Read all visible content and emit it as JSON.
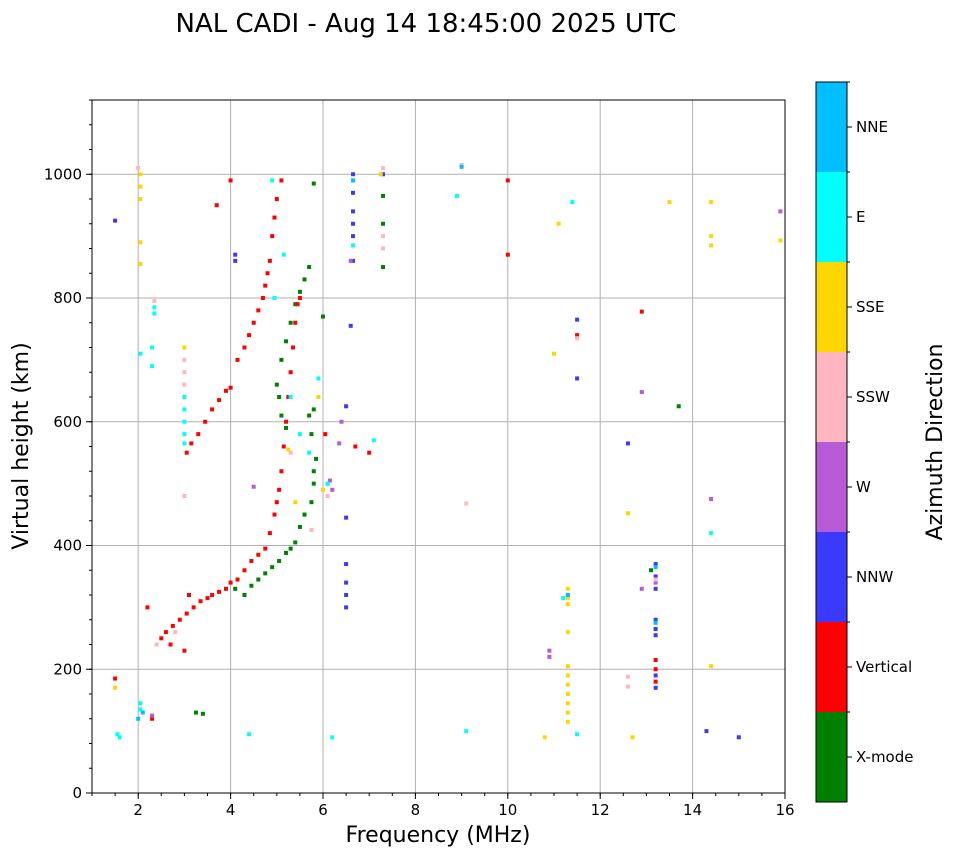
{
  "chart_data": {
    "type": "scatter",
    "title": "NAL CADI - Aug 14 18:45:00 2025 UTC",
    "xlabel": "Frequency (MHz)",
    "ylabel": "Virtual height (km)",
    "xlim": [
      1,
      16
    ],
    "ylim": [
      0,
      1120
    ],
    "xticks": [
      2,
      4,
      6,
      8,
      10,
      12,
      14,
      16
    ],
    "yticks": [
      0,
      200,
      400,
      600,
      800,
      1000
    ],
    "grid": true,
    "colorbar": {
      "label": "Azimuth Direction",
      "categories": [
        {
          "name": "X-mode",
          "color": "#008000"
        },
        {
          "name": "Vertical",
          "color": "#ff0000"
        },
        {
          "name": "NNW",
          "color": "#3a3aff"
        },
        {
          "name": "W",
          "color": "#b65ad6"
        },
        {
          "name": "SSW",
          "color": "#ffb6c1"
        },
        {
          "name": "SSE",
          "color": "#ffd700"
        },
        {
          "name": "E",
          "color": "#00ffff"
        },
        {
          "name": "NNE",
          "color": "#00bfff"
        }
      ]
    },
    "series": [
      {
        "name": "X-mode",
        "points": [
          [
            3.25,
            130
          ],
          [
            3.4,
            128
          ],
          [
            4.3,
            320
          ],
          [
            4.45,
            335
          ],
          [
            4.6,
            345
          ],
          [
            4.75,
            355
          ],
          [
            4.9,
            365
          ],
          [
            5.05,
            375
          ],
          [
            5.2,
            388
          ],
          [
            5.3,
            395
          ],
          [
            5.4,
            405
          ],
          [
            5.5,
            430
          ],
          [
            5.6,
            450
          ],
          [
            5.75,
            470
          ],
          [
            5.8,
            500
          ],
          [
            5.8,
            520
          ],
          [
            5.85,
            540
          ],
          [
            5.75,
            580
          ],
          [
            5.8,
            620
          ],
          [
            6.0,
            770
          ],
          [
            5.7,
            610
          ],
          [
            5.2,
            590
          ],
          [
            5.1,
            610
          ],
          [
            5.05,
            640
          ],
          [
            5.0,
            660
          ],
          [
            5.1,
            700
          ],
          [
            5.2,
            730
          ],
          [
            5.3,
            760
          ],
          [
            5.4,
            790
          ],
          [
            5.5,
            810
          ],
          [
            5.6,
            830
          ],
          [
            5.7,
            850
          ],
          [
            5.8,
            985
          ],
          [
            7.3,
            850
          ],
          [
            7.3,
            920
          ],
          [
            7.3,
            965
          ],
          [
            13.1,
            360
          ],
          [
            13.7,
            625
          ],
          [
            4.1,
            330
          ]
        ]
      },
      {
        "name": "Vertical",
        "points": [
          [
            1.5,
            185
          ],
          [
            2.3,
            120
          ],
          [
            2.5,
            250
          ],
          [
            2.6,
            260
          ],
          [
            2.75,
            270
          ],
          [
            2.9,
            280
          ],
          [
            3.05,
            290
          ],
          [
            3.2,
            300
          ],
          [
            3.35,
            310
          ],
          [
            3.5,
            315
          ],
          [
            3.6,
            320
          ],
          [
            3.75,
            325
          ],
          [
            3.9,
            330
          ],
          [
            4.0,
            340
          ],
          [
            4.15,
            345
          ],
          [
            4.3,
            360
          ],
          [
            4.45,
            375
          ],
          [
            4.6,
            385
          ],
          [
            4.75,
            395
          ],
          [
            4.85,
            420
          ],
          [
            4.95,
            450
          ],
          [
            5.0,
            470
          ],
          [
            5.05,
            490
          ],
          [
            5.1,
            520
          ],
          [
            5.15,
            560
          ],
          [
            5.2,
            600
          ],
          [
            5.25,
            640
          ],
          [
            5.3,
            680
          ],
          [
            5.35,
            720
          ],
          [
            5.4,
            760
          ],
          [
            5.45,
            790
          ],
          [
            5.5,
            800
          ],
          [
            3.05,
            550
          ],
          [
            3.15,
            565
          ],
          [
            3.3,
            580
          ],
          [
            3.45,
            600
          ],
          [
            3.6,
            620
          ],
          [
            3.75,
            635
          ],
          [
            3.9,
            650
          ],
          [
            4.0,
            655
          ],
          [
            4.15,
            700
          ],
          [
            4.3,
            720
          ],
          [
            4.4,
            740
          ],
          [
            4.5,
            760
          ],
          [
            4.6,
            780
          ],
          [
            4.7,
            800
          ],
          [
            4.75,
            820
          ],
          [
            4.8,
            840
          ],
          [
            4.85,
            860
          ],
          [
            4.9,
            900
          ],
          [
            4.95,
            930
          ],
          [
            5.0,
            960
          ],
          [
            5.1,
            990
          ],
          [
            4.0,
            990
          ],
          [
            3.7,
            950
          ],
          [
            6.05,
            580
          ],
          [
            6.7,
            560
          ],
          [
            7.0,
            550
          ],
          [
            10.0,
            990
          ],
          [
            10.0,
            870
          ],
          [
            11.5,
            740
          ],
          [
            12.9,
            778
          ],
          [
            13.2,
            200
          ],
          [
            13.2,
            215
          ],
          [
            13.2,
            180
          ],
          [
            2.2,
            300
          ],
          [
            2.7,
            240
          ],
          [
            3.0,
            230
          ],
          [
            3.1,
            320
          ]
        ]
      },
      {
        "name": "NNW",
        "points": [
          [
            1.5,
            925
          ],
          [
            6.65,
            1000
          ],
          [
            6.65,
            970
          ],
          [
            6.65,
            940
          ],
          [
            6.65,
            920
          ],
          [
            6.65,
            900
          ],
          [
            6.65,
            860
          ],
          [
            6.6,
            755
          ],
          [
            6.5,
            625
          ],
          [
            6.5,
            445
          ],
          [
            6.5,
            370
          ],
          [
            6.5,
            340
          ],
          [
            6.5,
            320
          ],
          [
            6.5,
            300
          ],
          [
            4.1,
            860
          ],
          [
            4.1,
            870
          ],
          [
            7.3,
            1000
          ],
          [
            13.2,
            370
          ],
          [
            13.2,
            350
          ],
          [
            13.2,
            330
          ],
          [
            13.2,
            280
          ],
          [
            13.2,
            265
          ],
          [
            13.2,
            255
          ],
          [
            13.2,
            190
          ],
          [
            13.2,
            170
          ],
          [
            12.6,
            565
          ],
          [
            11.5,
            670
          ],
          [
            11.5,
            765
          ],
          [
            15.0,
            90
          ],
          [
            14.3,
            100
          ]
        ]
      },
      {
        "name": "W",
        "points": [
          [
            6.1,
            500
          ],
          [
            6.15,
            505
          ],
          [
            6.2,
            490
          ],
          [
            6.35,
            565
          ],
          [
            6.6,
            860
          ],
          [
            12.9,
            648
          ],
          [
            12.9,
            330
          ],
          [
            10.9,
            230
          ],
          [
            10.9,
            220
          ],
          [
            15.9,
            940
          ],
          [
            14.4,
            475
          ],
          [
            13.2,
            340
          ],
          [
            2.3,
            125
          ],
          [
            4.5,
            495
          ],
          [
            6.4,
            600
          ]
        ]
      },
      {
        "name": "SSW",
        "points": [
          [
            3.0,
            700
          ],
          [
            3.0,
            680
          ],
          [
            3.0,
            660
          ],
          [
            3.0,
            480
          ],
          [
            2.35,
            795
          ],
          [
            2.0,
            1010
          ],
          [
            7.3,
            1010
          ],
          [
            7.3,
            900
          ],
          [
            7.3,
            880
          ],
          [
            5.75,
            425
          ],
          [
            6.1,
            480
          ],
          [
            9.0,
            1015
          ],
          [
            9.1,
            468
          ],
          [
            12.6,
            188
          ],
          [
            12.6,
            172
          ],
          [
            13.2,
            345
          ],
          [
            11.5,
            735
          ],
          [
            2.4,
            240
          ],
          [
            2.8,
            260
          ],
          [
            5.3,
            550
          ]
        ]
      },
      {
        "name": "SSE",
        "points": [
          [
            2.05,
            1000
          ],
          [
            2.05,
            980
          ],
          [
            2.05,
            960
          ],
          [
            2.05,
            890
          ],
          [
            2.05,
            855
          ],
          [
            1.5,
            170
          ],
          [
            3.0,
            720
          ],
          [
            5.25,
            555
          ],
          [
            5.4,
            470
          ],
          [
            5.9,
            640
          ],
          [
            6.0,
            490
          ],
          [
            7.25,
            1000
          ],
          [
            11.0,
            710
          ],
          [
            11.1,
            920
          ],
          [
            12.6,
            452
          ],
          [
            12.7,
            90
          ],
          [
            11.3,
            330
          ],
          [
            11.3,
            315
          ],
          [
            11.3,
            305
          ],
          [
            11.3,
            260
          ],
          [
            11.3,
            205
          ],
          [
            11.3,
            190
          ],
          [
            11.3,
            175
          ],
          [
            11.3,
            160
          ],
          [
            11.3,
            145
          ],
          [
            11.3,
            130
          ],
          [
            11.3,
            115
          ],
          [
            13.5,
            955
          ],
          [
            14.4,
            955
          ],
          [
            14.4,
            900
          ],
          [
            14.4,
            885
          ],
          [
            14.4,
            205
          ],
          [
            15.9,
            893
          ],
          [
            10.8,
            90
          ]
        ]
      },
      {
        "name": "E",
        "points": [
          [
            2.05,
            145
          ],
          [
            2.05,
            135
          ],
          [
            1.55,
            95
          ],
          [
            1.6,
            90
          ],
          [
            2.35,
            785
          ],
          [
            2.35,
            775
          ],
          [
            2.3,
            720
          ],
          [
            2.3,
            690
          ],
          [
            3.0,
            640
          ],
          [
            3.0,
            620
          ],
          [
            3.0,
            600
          ],
          [
            3.0,
            580
          ],
          [
            3.0,
            565
          ],
          [
            4.4,
            95
          ],
          [
            5.3,
            640
          ],
          [
            5.5,
            580
          ],
          [
            5.7,
            550
          ],
          [
            5.9,
            670
          ],
          [
            6.1,
            500
          ],
          [
            6.2,
            90
          ],
          [
            6.65,
            885
          ],
          [
            7.1,
            570
          ],
          [
            8.9,
            965
          ],
          [
            9.1,
            100
          ],
          [
            11.4,
            955
          ],
          [
            11.3,
            320
          ],
          [
            11.2,
            315
          ],
          [
            11.5,
            95
          ],
          [
            14.4,
            420
          ],
          [
            4.9,
            990
          ],
          [
            4.95,
            800
          ],
          [
            5.15,
            870
          ],
          [
            2.05,
            710
          ]
        ]
      },
      {
        "name": "NNE",
        "points": [
          [
            2.0,
            120
          ],
          [
            2.1,
            130
          ],
          [
            6.65,
            990
          ],
          [
            9.0,
            1012
          ],
          [
            13.2,
            275
          ],
          [
            13.2,
            365
          ],
          [
            11.3,
            320
          ]
        ]
      }
    ]
  }
}
